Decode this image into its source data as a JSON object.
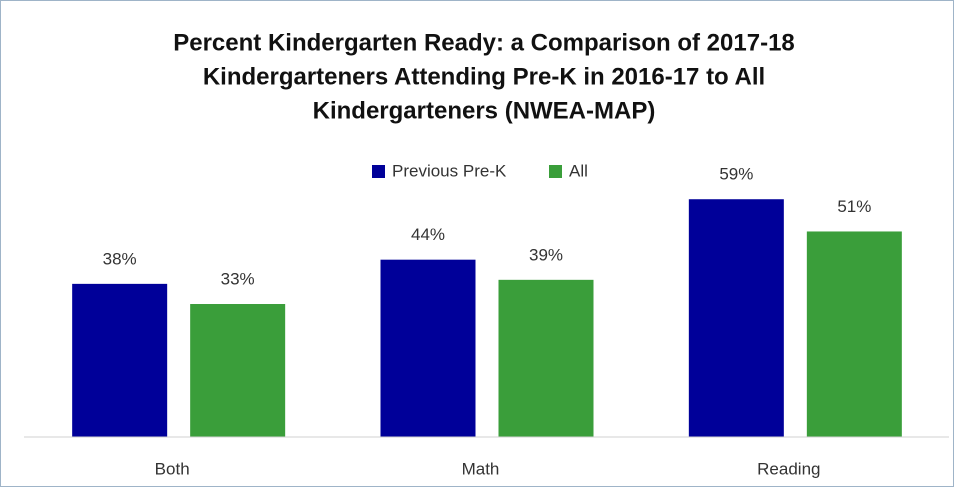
{
  "chart_data": {
    "type": "bar",
    "title": [
      "Percent Kindergarten Ready: a Comparison of 2017-18",
      "Kindergarteners Attending Pre-K in 2016-17 to All",
      "Kindergarteners (NWEA-MAP)"
    ],
    "categories": [
      "Both",
      "Math",
      "Reading"
    ],
    "series": [
      {
        "name": "Previous Pre-K",
        "color": "#000099",
        "values": [
          38,
          44,
          59
        ],
        "value_labels": [
          "38%",
          "44%",
          "59%"
        ]
      },
      {
        "name": "All",
        "color": "#3a9e3a",
        "values": [
          33,
          39,
          51
        ],
        "value_labels": [
          "33%",
          "39%",
          "51%"
        ]
      }
    ],
    "ylim": [
      0,
      100
    ],
    "legend": "top"
  }
}
